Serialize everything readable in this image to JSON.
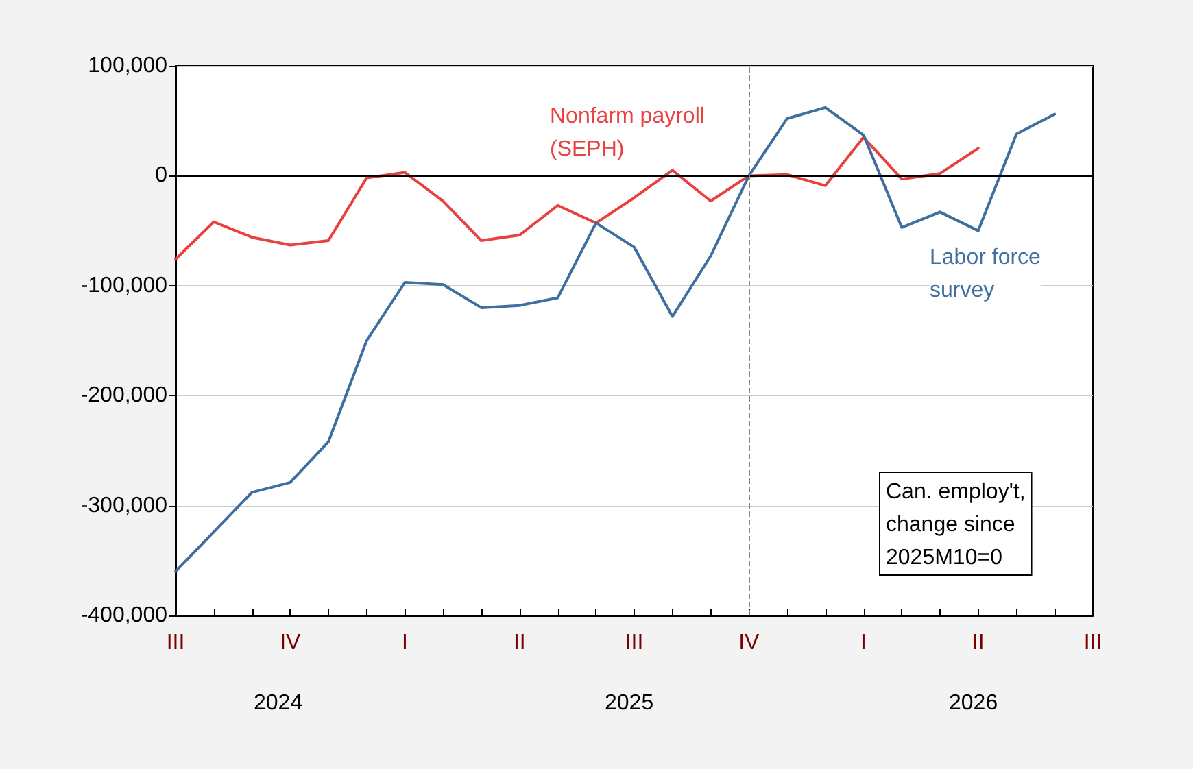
{
  "chart_data": {
    "type": "line",
    "categories": [
      "III",
      null,
      null,
      "IV",
      null,
      null,
      "I",
      null,
      null,
      "II",
      null,
      null,
      "III",
      null,
      null,
      "IV",
      null,
      null,
      "I",
      null,
      null,
      "II",
      null,
      null,
      "III"
    ],
    "series": [
      {
        "name": "Nonfarm payroll\n(SEPH)",
        "color": "#e8413f",
        "values": [
          -76000,
          -42000,
          -56000,
          -63000,
          -59000,
          -2000,
          3000,
          -23000,
          -59000,
          -54000,
          -27000,
          -43000,
          -20000,
          5000,
          -23000,
          0,
          1000,
          -9000,
          35000,
          -3000,
          2000,
          25000,
          null,
          null,
          null
        ]
      },
      {
        "name": "Labor force\nsurvey",
        "color": "#3f6fa0",
        "values": [
          -360000,
          -324000,
          -288000,
          -279000,
          -242000,
          -150000,
          -97000,
          -99000,
          -120000,
          -118000,
          -111000,
          -43000,
          -65000,
          -128000,
          -73000,
          0,
          52000,
          62000,
          37000,
          -47000,
          -33000,
          -50000,
          38000,
          56000,
          null
        ]
      }
    ],
    "ylim": [
      -400000,
      100000
    ],
    "yticks": [
      {
        "value": -400000,
        "label": "-400,000"
      },
      {
        "value": -300000,
        "label": "-300,000"
      },
      {
        "value": -200000,
        "label": "-200,000"
      },
      {
        "value": -100000,
        "label": "-100,000"
      },
      {
        "value": 0,
        "label": "0"
      },
      {
        "value": 100000,
        "label": "100,000"
      }
    ],
    "grid": "y",
    "ref_lines": [
      {
        "axis": "y",
        "value": 0,
        "color": "#000000",
        "line_style": "solid"
      }
    ],
    "annotations": [
      "Can. employ't,\nchange since\n2025M10=0",
      "2024",
      "2025",
      "2026"
    ]
  }
}
